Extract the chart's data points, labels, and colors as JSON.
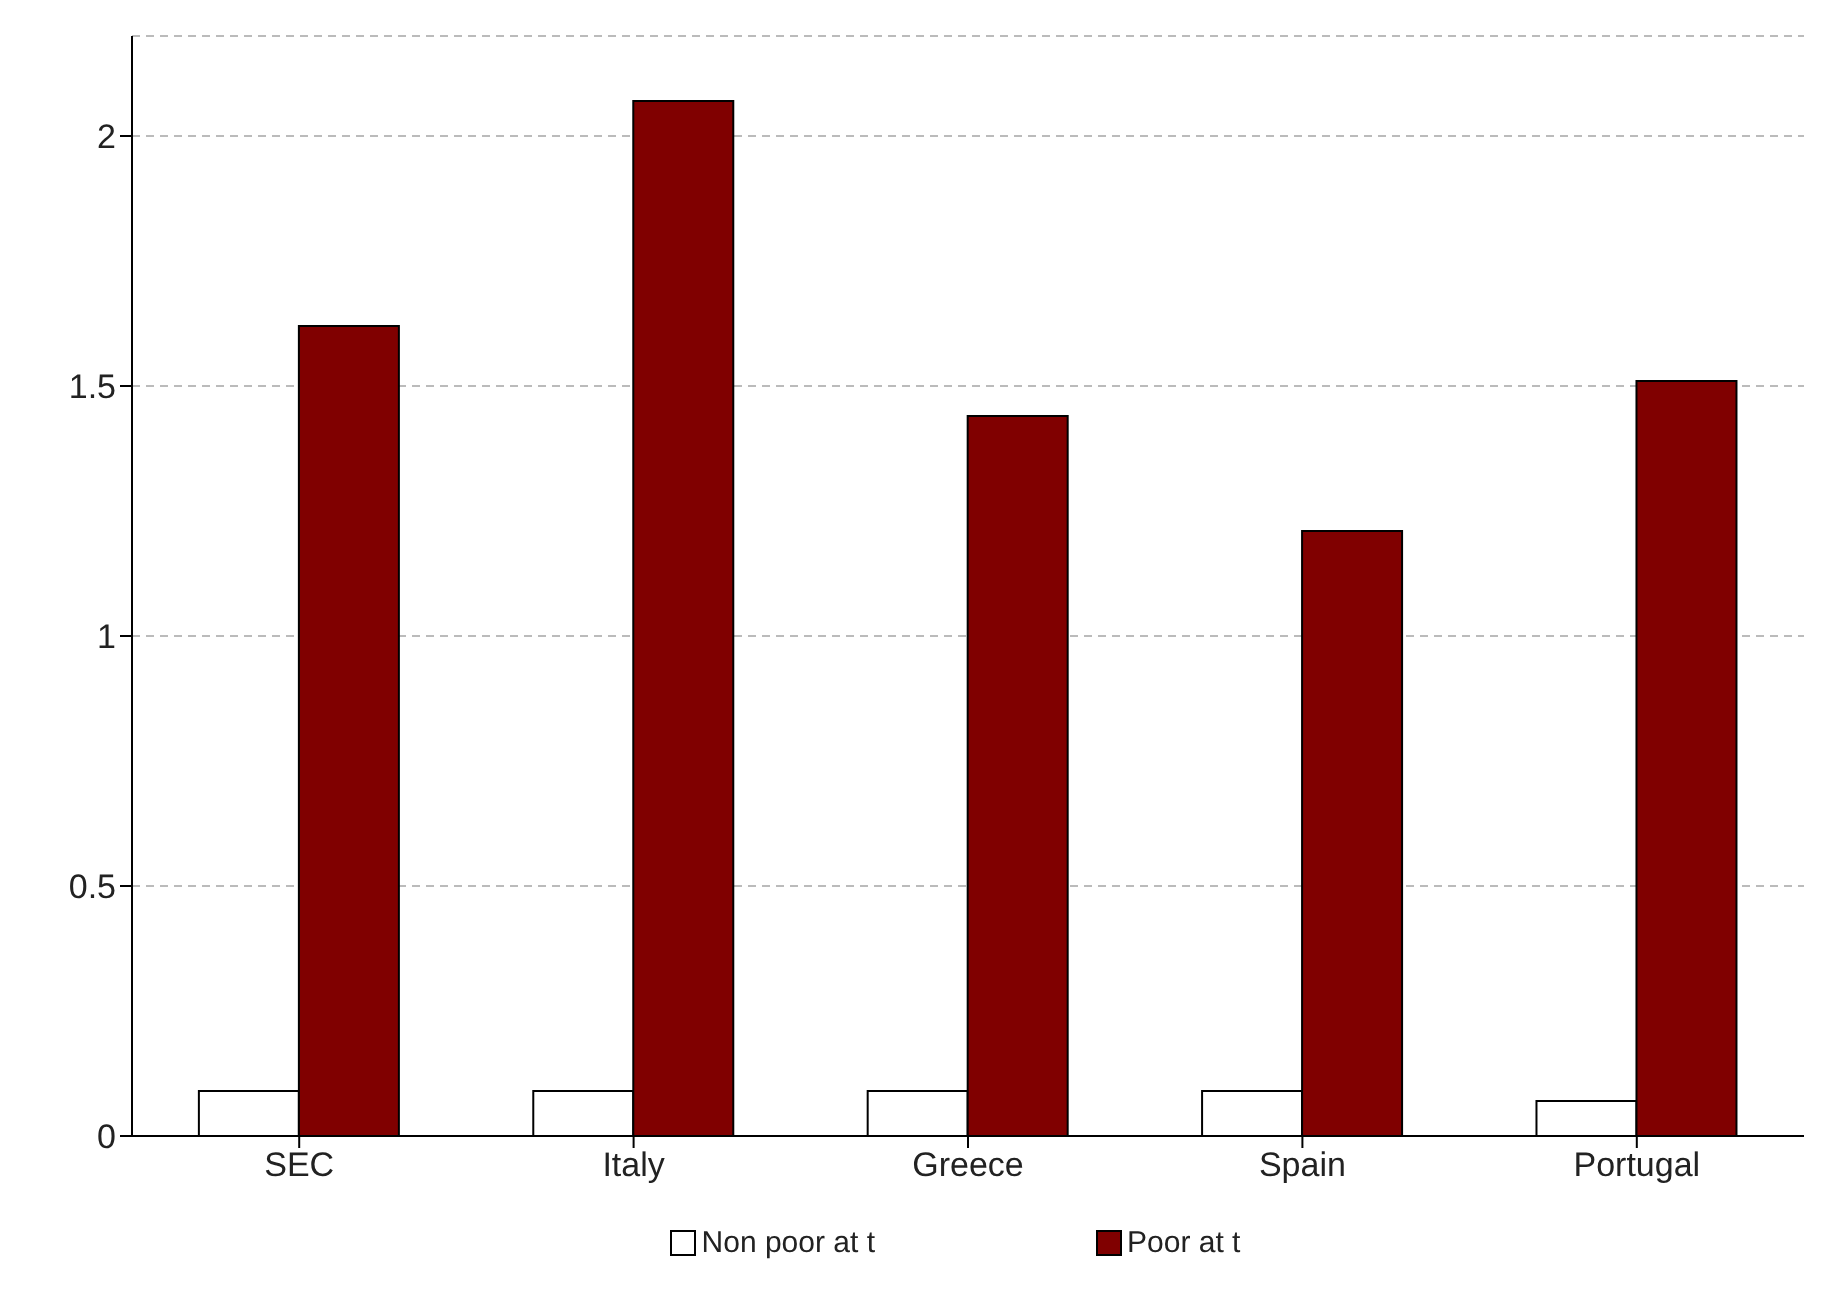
{
  "chart_data": {
    "type": "bar",
    "categories": [
      "SEC",
      "Italy",
      "Greece",
      "Spain",
      "Portugal"
    ],
    "series": [
      {
        "name": "Non poor at t",
        "color": "#ffffff",
        "values": [
          0.09,
          0.09,
          0.09,
          0.09,
          0.07
        ]
      },
      {
        "name": "Poor at t",
        "color": "#800000",
        "values": [
          1.62,
          2.07,
          1.44,
          1.21,
          1.51
        ]
      }
    ],
    "ylim": [
      0,
      2.2
    ],
    "yticks": [
      0,
      0.5,
      1,
      1.5,
      2
    ],
    "grid": "y",
    "legend": "bottom"
  }
}
